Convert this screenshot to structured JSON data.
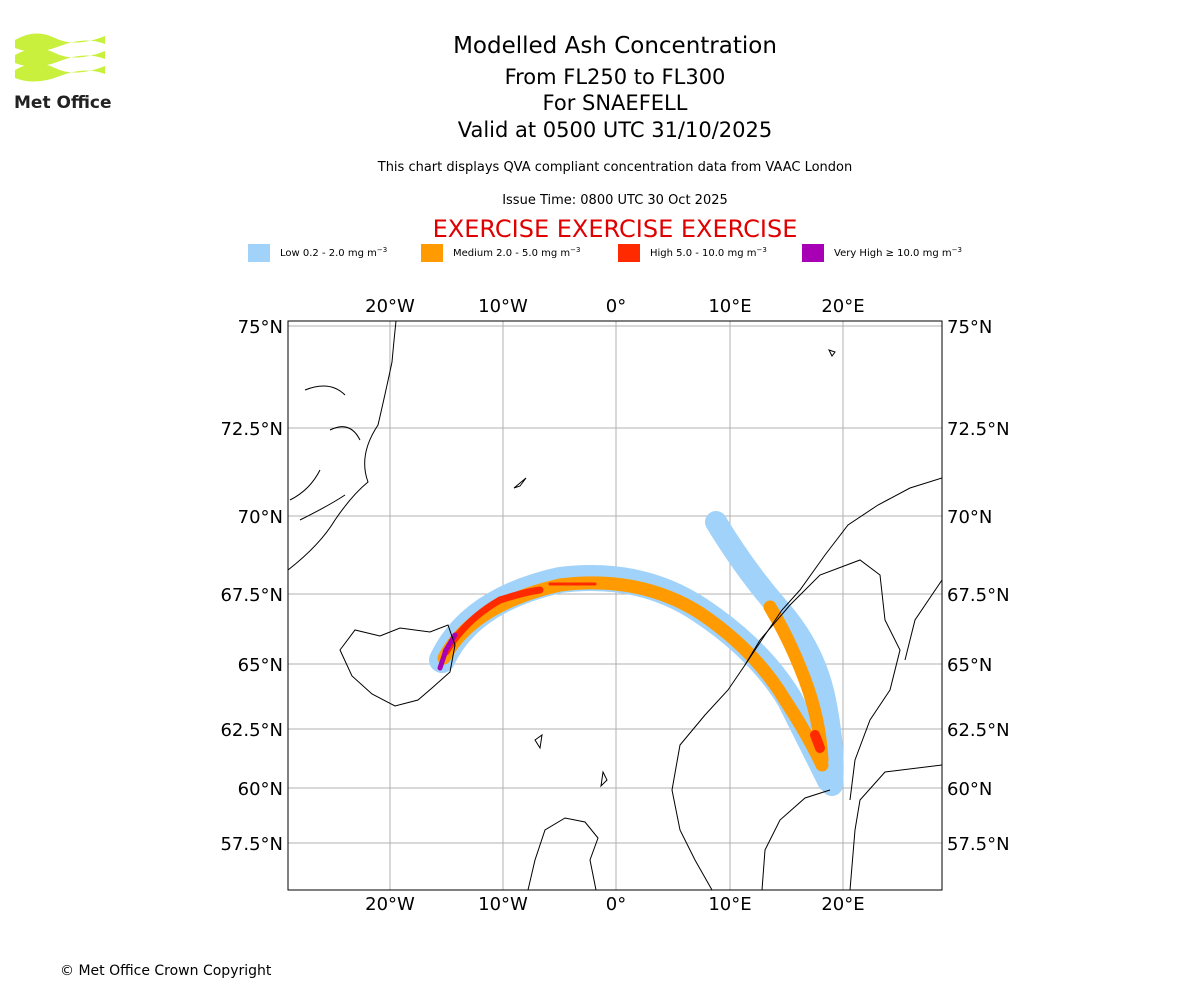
{
  "logo": {
    "text": "Met Office"
  },
  "header": {
    "title": "Modelled Ash Concentration",
    "levels": "From FL250 to FL300",
    "volcano": "For SNAEFELL",
    "valid": "Valid at 0500 UTC 31/10/2025",
    "note": "This chart displays QVA compliant concentration data from VAAC London",
    "issue": "Issue Time: 0800 UTC 30 Oct 2025",
    "exercise": "EXERCISE EXERCISE EXERCISE"
  },
  "legend": [
    {
      "label": "Low 0.2 - 2.0 mg m",
      "sup": "−3",
      "color": "#a0d2fa"
    },
    {
      "label": "Medium 2.0 - 5.0 mg m",
      "sup": "−3",
      "color": "#ff9a00"
    },
    {
      "label": "High 5.0 - 10.0 mg m",
      "sup": "−3",
      "color": "#ff2a00"
    },
    {
      "label": "Very High  ≥  10.0 mg m",
      "sup": "−3",
      "color": "#a800b4"
    }
  ],
  "map": {
    "lon_labels": [
      "20°W",
      "10°W",
      "0°",
      "10°E",
      "20°E"
    ],
    "lat_labels": [
      "75°N",
      "72.5°N",
      "70°N",
      "67.5°N",
      "65°N",
      "62.5°N",
      "60°N",
      "57.5°N"
    ]
  },
  "footer": "© Met Office Crown Copyright"
}
